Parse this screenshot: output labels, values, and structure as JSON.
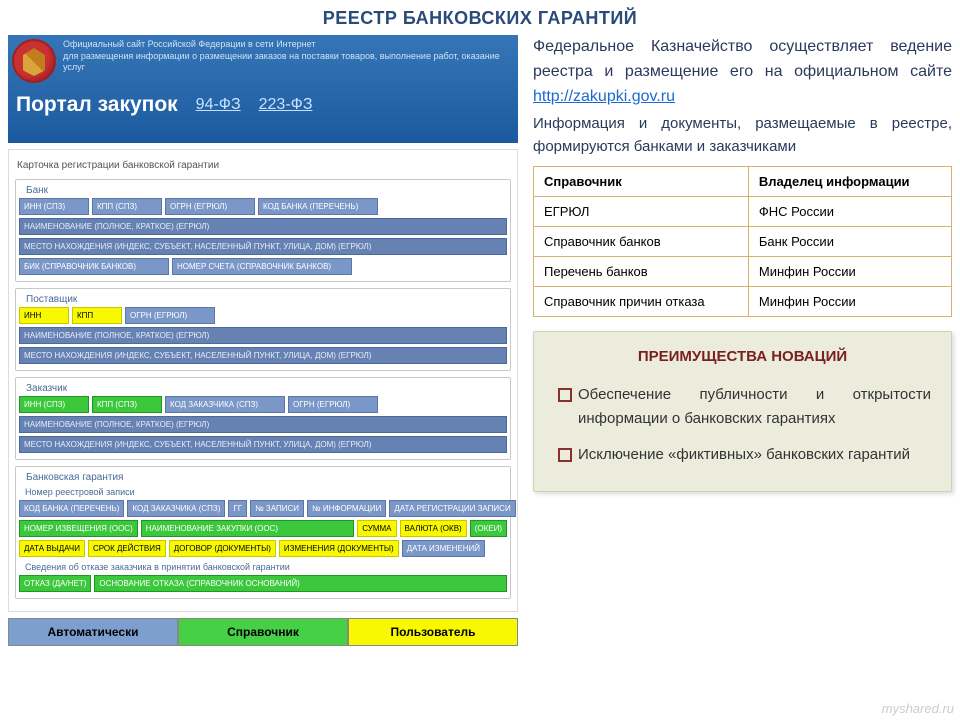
{
  "page_title": "РЕЕСТР БАНКОВСКИХ ГАРАНТИЙ",
  "banner": {
    "line1": "Официальный сайт Российской Федерации в сети Интернет",
    "line2": "для размещения информации о размещении заказов на поставки товаров, выполнение работ, оказание услуг",
    "portal": "Портал закупок",
    "law1": "94-ФЗ",
    "law2": "223-ФЗ"
  },
  "card_title": "Карточка регистрации банковской гарантии",
  "sections": {
    "bank": {
      "label": "Банк",
      "row1": [
        "ИНН (СПЗ)",
        "КПП (СПЗ)",
        "ОГРН (ЕГРЮЛ)",
        "КОД БАНКА (ПЕРЕЧЕНЬ)"
      ],
      "row2": "НАИМЕНОВАНИЕ (ПОЛНОЕ, КРАТКОЕ) (ЕГРЮЛ)",
      "row3": "МЕСТО НАХОЖДЕНИЯ (ИНДЕКС, СУБЪЕКТ, НАСЕЛЕННЫЙ ПУНКТ, УЛИЦА, ДОМ) (ЕГРЮЛ)",
      "row4": [
        "БИК (СПРАВОЧНИК БАНКОВ)",
        "НОМЕР СЧЕТА (СПРАВОЧНИК БАНКОВ)"
      ]
    },
    "supplier": {
      "label": "Поставщик",
      "row1": [
        "ИНН",
        "КПП",
        "ОГРН (ЕГРЮЛ)"
      ],
      "row2": "НАИМЕНОВАНИЕ (ПОЛНОЕ, КРАТКОЕ) (ЕГРЮЛ)",
      "row3": "МЕСТО НАХОЖДЕНИЯ (ИНДЕКС, СУБЪЕКТ, НАСЕЛЕННЫЙ ПУНКТ, УЛИЦА, ДОМ) (ЕГРЮЛ)"
    },
    "customer": {
      "label": "Заказчик",
      "row1": [
        "ИНН (СПЗ)",
        "КПП (СПЗ)",
        "КОД ЗАКАЗЧИКА (СПЗ)",
        "ОГРН (ЕГРЮЛ)"
      ],
      "row2": "НАИМЕНОВАНИЕ (ПОЛНОЕ, КРАТКОЕ) (ЕГРЮЛ)",
      "row3": "МЕСТО НАХОЖДЕНИЯ (ИНДЕКС, СУБЪЕКТ, НАСЕЛЕННЫЙ ПУНКТ, УЛИЦА, ДОМ) (ЕГРЮЛ)"
    },
    "guarantee": {
      "label": "Банковская гарантия",
      "sub": "Номер реестровой записи",
      "row1": [
        {
          "t": "КОД БАНКА (ПЕРЕЧЕНЬ)",
          "c": "blue"
        },
        {
          "t": "КОД ЗАКАЗЧИКА (СПЗ)",
          "c": "blue"
        },
        {
          "t": "ГГ",
          "c": "blue"
        },
        {
          "t": "№ ЗАПИСИ",
          "c": "blue"
        },
        {
          "t": "№ ИНФОРМАЦИИ",
          "c": "blue"
        },
        {
          "t": "ДАТА РЕГИСТРАЦИИ ЗАПИСИ",
          "c": "blue"
        }
      ],
      "row2": [
        {
          "t": "НОМЕР ИЗВЕЩЕНИЯ (ООС)",
          "c": "green"
        },
        {
          "t": "НАИМЕНОВАНИЕ ЗАКУПКИ (ООС)",
          "c": "green",
          "wide": true
        },
        {
          "t": "СУММА",
          "c": "yellow"
        },
        {
          "t": "ВАЛЮТА (ОКВ)",
          "c": "yellow"
        },
        {
          "t": "(ОКЕИ)",
          "c": "green"
        }
      ],
      "row3": [
        {
          "t": "ДАТА ВЫДАЧИ",
          "c": "yellow"
        },
        {
          "t": "СРОК ДЕЙСТВИЯ",
          "c": "yellow"
        },
        {
          "t": "ДОГОВОР (ДОКУМЕНТЫ)",
          "c": "yellow"
        },
        {
          "t": "ИЗМЕНЕНИЯ (ДОКУМЕНТЫ)",
          "c": "yellow"
        },
        {
          "t": "ДАТА ИЗМЕНЕНИЙ",
          "c": "blue"
        }
      ],
      "sub2": "Сведения об отказе заказчика в принятии банковской гарантии",
      "row4": [
        {
          "t": "ОТКАЗ (ДА/НЕТ)",
          "c": "green"
        },
        {
          "t": "ОСНОВАНИЕ ОТКАЗА (СПРАВОЧНИК ОСНОВАНИЙ)",
          "c": "green",
          "wide": true
        }
      ]
    }
  },
  "legend": {
    "auto": "Автоматически",
    "ref": "Справочник",
    "user": "Пользователь"
  },
  "desc1_prefix": "Федеральное Казначейство осуществляет ведение реестра и размещение его на официальном сайте ",
  "desc1_link": "http://zakupki.gov.ru",
  "desc2": "Информация и документы, размещаемые в реестре, формируются банками и заказчиками",
  "table": {
    "headers": [
      "Справочник",
      "Владелец информации"
    ],
    "rows": [
      [
        "ЕГРЮЛ",
        "ФНС России"
      ],
      [
        "Справочник банков",
        "Банк России"
      ],
      [
        "Перечень банков",
        "Минфин России"
      ],
      [
        "Справочник причин отказа",
        "Минфин России"
      ]
    ]
  },
  "advantages": {
    "title": "ПРЕИМУЩЕСТВА НОВАЦИЙ",
    "items": [
      "Обеспечение публичности и открытости информации о банковских гарантиях",
      "Исключение «фиктивных» банковских гарантий"
    ]
  },
  "watermark": "myshared.ru",
  "colors": {
    "blue_field": "#7a97c8",
    "dark_field": "#6582b2",
    "yellow_field": "#f8f800",
    "green_field": "#3cc83c",
    "banner_top": "#3676b8",
    "banner_bottom": "#1b5a9e",
    "adv_bg": "#ececdc",
    "adv_title": "#7a2020",
    "table_border": "#d8b070"
  }
}
